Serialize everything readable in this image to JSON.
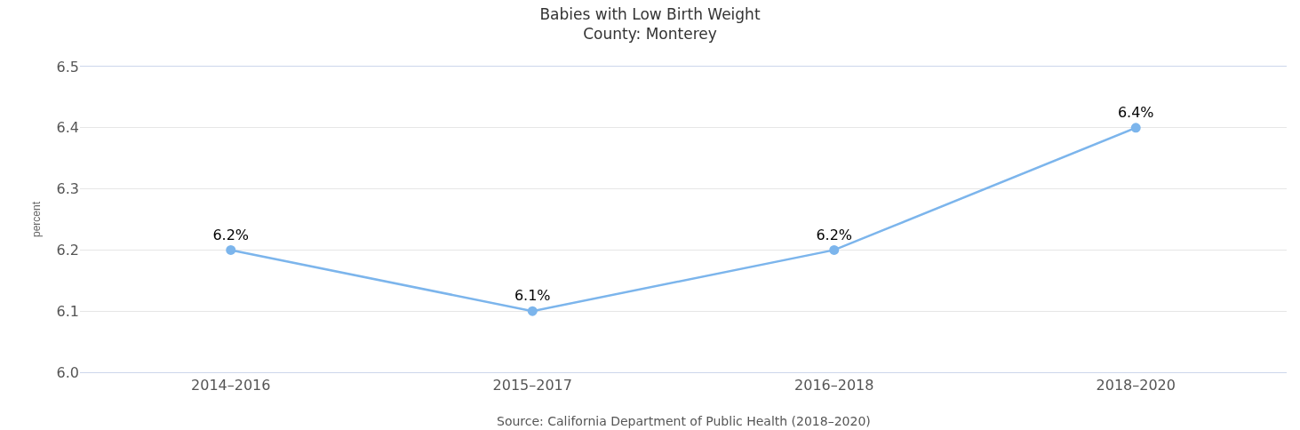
{
  "chart_data": {
    "type": "line",
    "title": "Babies with Low Birth Weight\nCounty: Monterey",
    "ylabel": "percent",
    "annotations": [
      "Source: California Department of Public Health (2018–2020)"
    ],
    "categories": [
      "2014–2016",
      "2015–2017",
      "2016–2018",
      "2018–2020"
    ],
    "series": [
      {
        "color": "#7cb5ec",
        "values": [
          6.2,
          6.1,
          6.2,
          6.4
        ],
        "value_labels": [
          "6.2%",
          "6.1%",
          "6.2%",
          "6.4%"
        ]
      }
    ],
    "ylim": [
      6.0,
      6.5
    ],
    "yticks": [
      "6.0",
      "6.1",
      "6.2",
      "6.3",
      "6.4",
      "6.5"
    ],
    "grid": "y",
    "legend": false,
    "marker": "circle",
    "line_style": "solid"
  }
}
